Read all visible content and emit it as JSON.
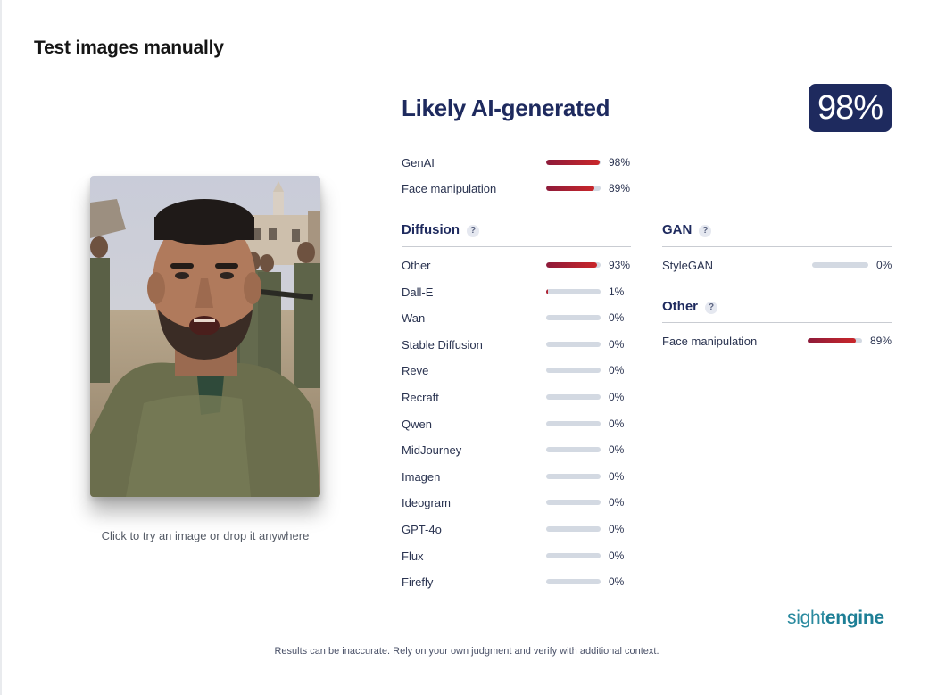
{
  "page": {
    "title": "Test images manually"
  },
  "image": {
    "hint": "Click to try an image or drop it anywhere"
  },
  "result": {
    "verdict": "Likely AI-generated",
    "score": "98%"
  },
  "summary": [
    {
      "label": "GenAI",
      "value": 0.98,
      "pct": "98%"
    },
    {
      "label": "Face manipulation",
      "value": 0.89,
      "pct": "89%"
    }
  ],
  "diffusion": {
    "title": "Diffusion",
    "help": "?",
    "items": [
      {
        "label": "Other",
        "value": 0.93,
        "pct": "93%"
      },
      {
        "label": "Dall-E",
        "value": 0.01,
        "pct": "1%"
      },
      {
        "label": "Wan",
        "value": 0,
        "pct": "0%"
      },
      {
        "label": "Stable Diffusion",
        "value": 0,
        "pct": "0%"
      },
      {
        "label": "Reve",
        "value": 0,
        "pct": "0%"
      },
      {
        "label": "Recraft",
        "value": 0,
        "pct": "0%"
      },
      {
        "label": "Qwen",
        "value": 0,
        "pct": "0%"
      },
      {
        "label": "MidJourney",
        "value": 0,
        "pct": "0%"
      },
      {
        "label": "Imagen",
        "value": 0,
        "pct": "0%"
      },
      {
        "label": "Ideogram",
        "value": 0,
        "pct": "0%"
      },
      {
        "label": "GPT-4o",
        "value": 0,
        "pct": "0%"
      },
      {
        "label": "Flux",
        "value": 0,
        "pct": "0%"
      },
      {
        "label": "Firefly",
        "value": 0,
        "pct": "0%"
      }
    ]
  },
  "gan": {
    "title": "GAN",
    "help": "?",
    "items": [
      {
        "label": "StyleGAN",
        "value": 0,
        "pct": "0%"
      }
    ]
  },
  "other": {
    "title": "Other",
    "help": "?",
    "items": [
      {
        "label": "Face manipulation",
        "value": 0.89,
        "pct": "89%"
      }
    ]
  },
  "brand": {
    "light": "sight",
    "bold": "engine"
  },
  "footer": {
    "disclaimer": "Results can be inaccurate. Rely on your own judgment and verify with additional context."
  },
  "colors": {
    "accent": "#1e2a5e",
    "bar_track": "#d3d9e2",
    "bar_fill_start": "#8e1b3a",
    "bar_fill_end": "#c9262a",
    "brand": "#2a8a9f"
  }
}
